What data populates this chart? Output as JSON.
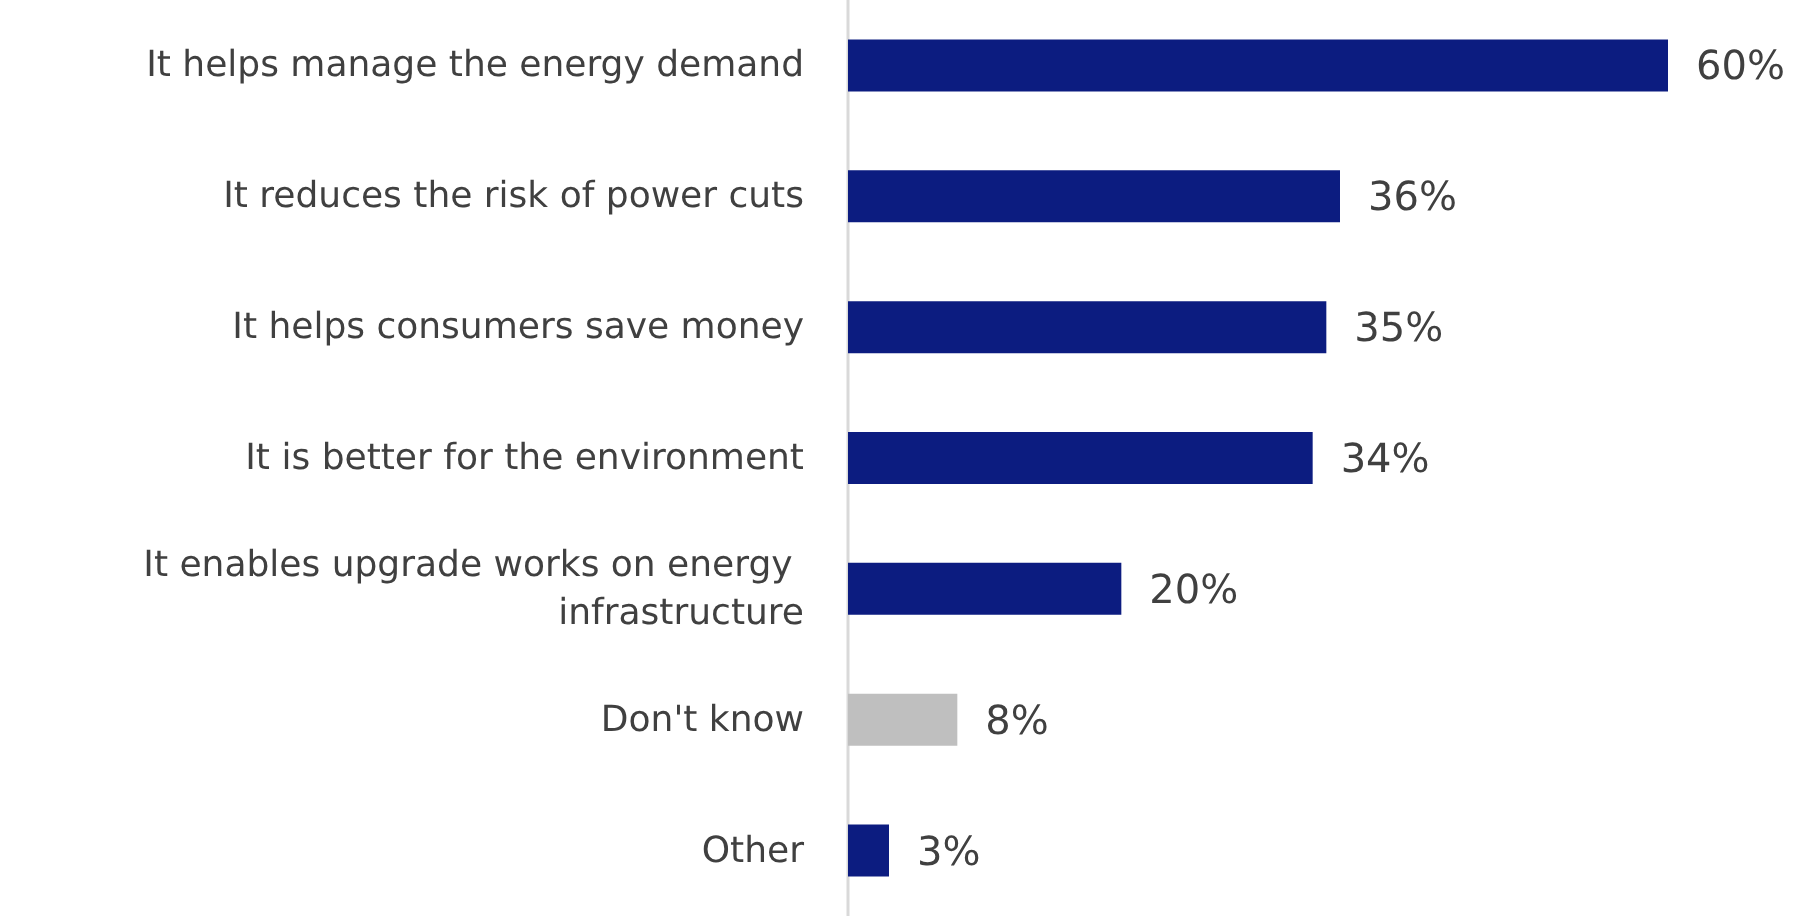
{
  "chart_data": {
    "type": "bar",
    "orientation": "horizontal",
    "categories": [
      "It helps manage the energy demand",
      "It reduces the risk of power cuts",
      "It helps consumers save money",
      "It is better for the environment",
      "It enables upgrade works on energy infrastructure",
      "Don't know",
      "Other"
    ],
    "values": [
      60,
      36,
      35,
      34,
      20,
      8,
      3
    ],
    "colors": [
      "#0c1c80",
      "#0c1c80",
      "#0c1c80",
      "#0c1c80",
      "#0c1c80",
      "#bfbfbf",
      "#0c1c80"
    ],
    "value_labels": [
      "60%",
      "36%",
      "35%",
      "34%",
      "20%",
      "8%",
      "3%"
    ]
  }
}
